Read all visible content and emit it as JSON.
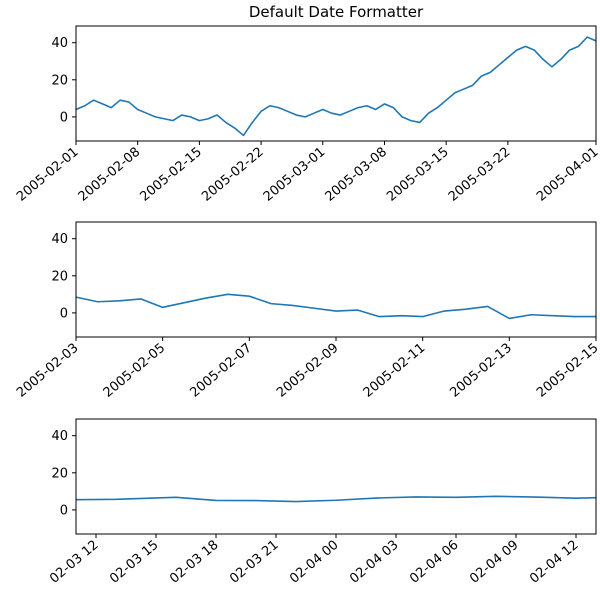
{
  "chart_data": [
    {
      "type": "line",
      "title": "Default Date Formatter",
      "xlabel": "",
      "ylabel": "",
      "xlim": [
        "2005-02-01",
        "2005-04-01"
      ],
      "ylim": [
        -13,
        49
      ],
      "yticks": [
        0,
        20,
        40
      ],
      "xticks": [
        "2005-02-01",
        "2005-02-08",
        "2005-02-15",
        "2005-02-22",
        "2005-03-01",
        "2005-03-08",
        "2005-03-15",
        "2005-03-22",
        "2005-04-01"
      ],
      "color": "#1f77b4",
      "grid": false,
      "series": [
        {
          "x": [
            "2005-02-01",
            "2005-02-02",
            "2005-02-03",
            "2005-02-04",
            "2005-02-05",
            "2005-02-06",
            "2005-02-07",
            "2005-02-08",
            "2005-02-09",
            "2005-02-10",
            "2005-02-11",
            "2005-02-12",
            "2005-02-13",
            "2005-02-14",
            "2005-02-15",
            "2005-02-16",
            "2005-02-17",
            "2005-02-18",
            "2005-02-19",
            "2005-02-20",
            "2005-02-21",
            "2005-02-22",
            "2005-02-23",
            "2005-02-24",
            "2005-02-25",
            "2005-02-26",
            "2005-02-27",
            "2005-02-28",
            "2005-03-01",
            "2005-03-02",
            "2005-03-03",
            "2005-03-04",
            "2005-03-05",
            "2005-03-06",
            "2005-03-07",
            "2005-03-08",
            "2005-03-09",
            "2005-03-10",
            "2005-03-11",
            "2005-03-12",
            "2005-03-13",
            "2005-03-14",
            "2005-03-15",
            "2005-03-16",
            "2005-03-17",
            "2005-03-18",
            "2005-03-19",
            "2005-03-20",
            "2005-03-21",
            "2005-03-22",
            "2005-03-23",
            "2005-03-24",
            "2005-03-25",
            "2005-03-26",
            "2005-03-27",
            "2005-03-28",
            "2005-03-29",
            "2005-03-30",
            "2005-03-31",
            "2005-04-01"
          ],
          "values": [
            4,
            6,
            9,
            7,
            5,
            9,
            8,
            4,
            2,
            0,
            -1,
            -2,
            1,
            0,
            -2,
            -1,
            1,
            -3,
            -6,
            -10,
            -3,
            3,
            6,
            5,
            3,
            1,
            0,
            2,
            4,
            2,
            1,
            3,
            5,
            6,
            4,
            7,
            5,
            0,
            -2,
            -3,
            2,
            5,
            9,
            13,
            15,
            17,
            22,
            24,
            28,
            32,
            36,
            38,
            36,
            31,
            27,
            31,
            36,
            38,
            43,
            41
          ]
        }
      ]
    },
    {
      "type": "line",
      "title": "",
      "xlabel": "",
      "ylabel": "",
      "xlim": [
        "2005-02-03",
        "2005-02-15"
      ],
      "ylim": [
        -13,
        49
      ],
      "yticks": [
        0,
        20,
        40
      ],
      "xticks": [
        "2005-02-03",
        "2005-02-05",
        "2005-02-07",
        "2005-02-09",
        "2005-02-11",
        "2005-02-13",
        "2005-02-15"
      ],
      "color": "#1f77b4",
      "grid": false,
      "series": [
        {
          "x": [
            "2005-02-03 00:00",
            "2005-02-03 12:00",
            "2005-02-04 00:00",
            "2005-02-04 12:00",
            "2005-02-05 00:00",
            "2005-02-05 12:00",
            "2005-02-06 00:00",
            "2005-02-06 12:00",
            "2005-02-07 00:00",
            "2005-02-07 12:00",
            "2005-02-08 00:00",
            "2005-02-08 12:00",
            "2005-02-09 00:00",
            "2005-02-09 12:00",
            "2005-02-10 00:00",
            "2005-02-10 12:00",
            "2005-02-11 00:00",
            "2005-02-11 12:00",
            "2005-02-12 00:00",
            "2005-02-12 12:00",
            "2005-02-13 00:00",
            "2005-02-13 12:00",
            "2005-02-14 00:00",
            "2005-02-14 12:00",
            "2005-02-15 00:00"
          ],
          "values": [
            8.5,
            6,
            6.5,
            7.5,
            3,
            5.5,
            8,
            10,
            9,
            5,
            4,
            2.5,
            1,
            1.5,
            -2,
            -1.5,
            -2,
            1,
            2,
            3.5,
            -3,
            -1,
            -1.5,
            -2,
            -2
          ]
        }
      ]
    },
    {
      "type": "line",
      "title": "",
      "xlabel": "",
      "ylabel": "",
      "xlim": [
        "2005-02-03 11:00",
        "2005-02-04 13:00"
      ],
      "ylim": [
        -13,
        49
      ],
      "yticks": [
        0,
        20,
        40
      ],
      "xticks": [
        "02-03 12",
        "02-03 15",
        "02-03 18",
        "02-03 21",
        "02-04 00",
        "02-04 03",
        "02-04 06",
        "02-04 09",
        "02-04 12"
      ],
      "color": "#1f77b4",
      "grid": false,
      "series": [
        {
          "x": [
            "2005-02-03 11:00",
            "2005-02-03 13:00",
            "2005-02-03 16:00",
            "2005-02-03 18:00",
            "2005-02-03 20:00",
            "2005-02-03 22:00",
            "2005-02-04 00:00",
            "2005-02-04 02:00",
            "2005-02-04 04:00",
            "2005-02-04 06:00",
            "2005-02-04 08:00",
            "2005-02-04 10:00",
            "2005-02-04 12:00",
            "2005-02-04 13:00"
          ],
          "values": [
            5.5,
            5.7,
            6.8,
            5.1,
            5.0,
            4.5,
            5.2,
            6.4,
            7.0,
            6.8,
            7.3,
            6.9,
            6.3,
            6.6
          ]
        }
      ]
    }
  ]
}
